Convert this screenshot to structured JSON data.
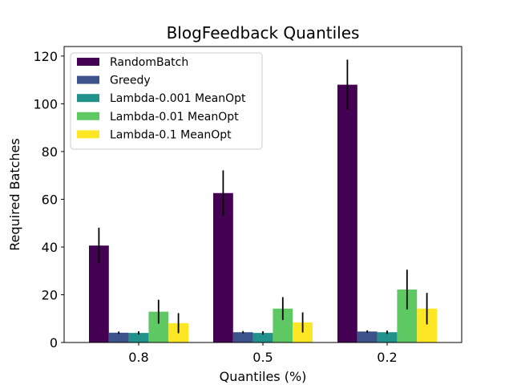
{
  "chart_data": {
    "type": "bar",
    "title": "BlogFeedback Quantiles",
    "xlabel": "Quantiles (%)",
    "ylabel": "Required Batches",
    "categories": [
      "0.8",
      "0.5",
      "0.2"
    ],
    "ylim": [
      0,
      124
    ],
    "yticks": [
      0,
      20,
      40,
      60,
      80,
      100,
      120
    ],
    "grid": false,
    "legend": "top-left",
    "series": [
      {
        "name": "RandomBatch",
        "color": "#440154",
        "values": [
          40.6,
          62.6,
          108.0
        ],
        "errors": [
          7.5,
          9.5,
          10.5
        ]
      },
      {
        "name": "Greedy",
        "color": "#3b528b",
        "values": [
          4.1,
          4.3,
          4.6
        ],
        "errors": [
          0.5,
          0.5,
          0.5
        ]
      },
      {
        "name": "Lambda-0.001 MeanOpt",
        "color": "#21918c",
        "values": [
          4.0,
          4.0,
          4.3
        ],
        "errors": [
          0.7,
          0.7,
          0.7
        ]
      },
      {
        "name": "Lambda-0.01 MeanOpt",
        "color": "#5ec962",
        "values": [
          12.9,
          14.2,
          22.2
        ],
        "errors": [
          5.0,
          4.8,
          8.3
        ]
      },
      {
        "name": "Lambda-0.1 MeanOpt",
        "color": "#fde725",
        "values": [
          8.1,
          8.4,
          14.2
        ],
        "errors": [
          4.2,
          4.2,
          6.6
        ]
      }
    ]
  }
}
